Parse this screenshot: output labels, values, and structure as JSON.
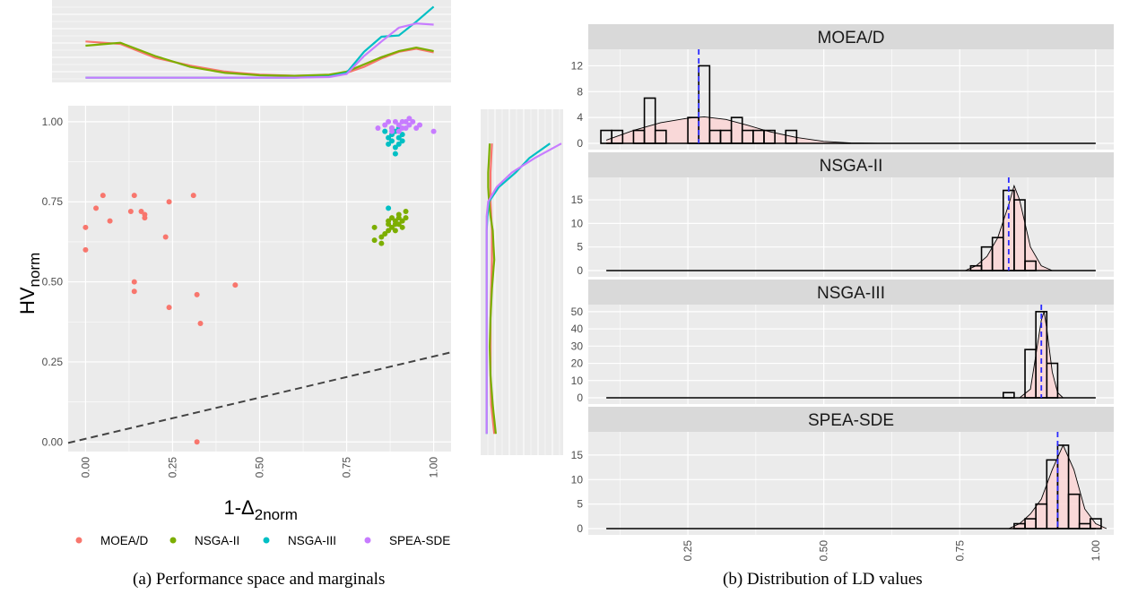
{
  "captions": {
    "a": "(a) Performance space and marginals",
    "b": "(b) Distribution of LD values"
  },
  "colors": {
    "panel_bg": "#ebebeb",
    "strip_bg": "#d9d9d9",
    "grid": "#ffffff",
    "MOEA/D": "#f8766d",
    "NSGA-II": "#7cae00",
    "NSGA-III": "#00bfc4",
    "SPEA-SDE": "#c77cff",
    "hist_fill": "#fbd5d5",
    "mean_line": "#2b2bff",
    "reference_line": "#444444"
  },
  "chart_data": [
    {
      "type": "scatter",
      "ylabel_main": "HV",
      "ylabel_sub": "norm",
      "xlabel_prefix": "1-",
      "xlabel_symbol": "Δ",
      "xlabel_sub": "2norm",
      "xlim": [
        -0.05,
        1.05
      ],
      "ylim": [
        -0.03,
        1.05
      ],
      "x_ticks": [
        "0.00",
        "0.25",
        "0.50",
        "0.75",
        "1.00"
      ],
      "y_ticks": [
        "0.00",
        "0.25",
        "0.50",
        "0.75",
        "1.00"
      ],
      "grid": true,
      "reference_line": {
        "style": "dashed",
        "points": [
          [
            -0.05,
            -0.003
          ],
          [
            1.05,
            0.28
          ]
        ]
      },
      "legend_position": "bottom",
      "series": [
        {
          "name": "MOEA/D",
          "points": [
            [
              0.0,
              0.6
            ],
            [
              0.0,
              0.67
            ],
            [
              0.03,
              0.73
            ],
            [
              0.05,
              0.77
            ],
            [
              0.07,
              0.69
            ],
            [
              0.13,
              0.72
            ],
            [
              0.14,
              0.77
            ],
            [
              0.14,
              0.5
            ],
            [
              0.14,
              0.47
            ],
            [
              0.16,
              0.72
            ],
            [
              0.17,
              0.71
            ],
            [
              0.17,
              0.7
            ],
            [
              0.23,
              0.64
            ],
            [
              0.24,
              0.75
            ],
            [
              0.24,
              0.42
            ],
            [
              0.31,
              0.77
            ],
            [
              0.32,
              0.46
            ],
            [
              0.33,
              0.37
            ],
            [
              0.43,
              0.49
            ],
            [
              0.32,
              0.0
            ]
          ]
        },
        {
          "name": "NSGA-II",
          "points": [
            [
              0.83,
              0.63
            ],
            [
              0.83,
              0.67
            ],
            [
              0.85,
              0.64
            ],
            [
              0.85,
              0.62
            ],
            [
              0.86,
              0.65
            ],
            [
              0.87,
              0.68
            ],
            [
              0.87,
              0.66
            ],
            [
              0.88,
              0.7
            ],
            [
              0.88,
              0.67
            ],
            [
              0.89,
              0.69
            ],
            [
              0.89,
              0.66
            ],
            [
              0.9,
              0.71
            ],
            [
              0.9,
              0.68
            ],
            [
              0.9,
              0.7
            ],
            [
              0.91,
              0.69
            ],
            [
              0.91,
              0.67
            ],
            [
              0.92,
              0.7
            ],
            [
              0.92,
              0.72
            ],
            [
              0.87,
              0.69
            ],
            [
              0.89,
              0.68
            ]
          ]
        },
        {
          "name": "NSGA-III",
          "points": [
            [
              0.86,
              0.97
            ],
            [
              0.87,
              0.95
            ],
            [
              0.87,
              0.93
            ],
            [
              0.88,
              0.96
            ],
            [
              0.88,
              0.94
            ],
            [
              0.89,
              0.92
            ],
            [
              0.89,
              0.97
            ],
            [
              0.89,
              0.9
            ],
            [
              0.9,
              0.95
            ],
            [
              0.9,
              0.93
            ],
            [
              0.91,
              0.96
            ],
            [
              0.91,
              0.94
            ],
            [
              0.88,
              0.98
            ],
            [
              0.9,
              0.98
            ],
            [
              0.87,
              0.73
            ]
          ]
        },
        {
          "name": "SPEA-SDE",
          "points": [
            [
              0.84,
              0.98
            ],
            [
              0.86,
              0.99
            ],
            [
              0.87,
              1.0
            ],
            [
              0.88,
              0.98
            ],
            [
              0.89,
              1.0
            ],
            [
              0.9,
              0.99
            ],
            [
              0.9,
              0.97
            ],
            [
              0.91,
              1.0
            ],
            [
              0.92,
              0.98
            ],
            [
              0.92,
              1.0
            ],
            [
              0.93,
              0.99
            ],
            [
              0.94,
              1.0
            ],
            [
              0.95,
              0.98
            ],
            [
              0.96,
              0.99
            ],
            [
              0.88,
              0.97
            ],
            [
              0.91,
              0.98
            ],
            [
              0.93,
              1.01
            ],
            [
              1.0,
              0.97
            ]
          ]
        }
      ]
    },
    {
      "type": "line",
      "role": "density of 1-Δ2norm",
      "x": [
        0.0,
        0.1,
        0.2,
        0.3,
        0.4,
        0.5,
        0.6,
        0.7,
        0.75,
        0.8,
        0.85,
        0.9,
        0.95,
        1.0
      ],
      "series": [
        {
          "name": "MOEA/D",
          "values": [
            0.62,
            0.58,
            0.35,
            0.22,
            0.12,
            0.07,
            0.05,
            0.06,
            0.1,
            0.2,
            0.34,
            0.45,
            0.5,
            0.44
          ]
        },
        {
          "name": "NSGA-II",
          "values": [
            0.55,
            0.6,
            0.38,
            0.2,
            0.1,
            0.06,
            0.05,
            0.07,
            0.12,
            0.24,
            0.36,
            0.46,
            0.52,
            0.46
          ]
        },
        {
          "name": "NSGA-III",
          "values": [
            0.02,
            0.02,
            0.02,
            0.02,
            0.02,
            0.02,
            0.02,
            0.04,
            0.1,
            0.45,
            0.7,
            0.72,
            0.95,
            1.2
          ]
        },
        {
          "name": "SPEA-SDE",
          "values": [
            0.02,
            0.02,
            0.02,
            0.02,
            0.02,
            0.02,
            0.02,
            0.03,
            0.08,
            0.38,
            0.62,
            0.85,
            0.92,
            0.9
          ]
        }
      ]
    },
    {
      "type": "line",
      "role": "density of HVnorm",
      "y": [
        0.0,
        0.1,
        0.2,
        0.3,
        0.4,
        0.5,
        0.6,
        0.7,
        0.75,
        0.8,
        0.85,
        0.9,
        0.95,
        1.0
      ],
      "series": [
        {
          "name": "MOEA/D",
          "values": [
            0.12,
            0.08,
            0.07,
            0.07,
            0.07,
            0.08,
            0.09,
            0.09,
            0.08,
            0.07,
            0.07,
            0.07,
            0.08,
            0.09
          ]
        },
        {
          "name": "NSGA-II",
          "values": [
            0.14,
            0.1,
            0.07,
            0.06,
            0.07,
            0.09,
            0.12,
            0.1,
            0.07,
            0.05,
            0.04,
            0.04,
            0.05,
            0.06
          ]
        },
        {
          "name": "NSGA-III",
          "values": [
            0.02,
            0.02,
            0.02,
            0.02,
            0.02,
            0.02,
            0.02,
            0.02,
            0.03,
            0.05,
            0.18,
            0.4,
            0.58,
            0.85
          ]
        },
        {
          "name": "SPEA-SDE",
          "values": [
            0.02,
            0.02,
            0.02,
            0.02,
            0.02,
            0.02,
            0.02,
            0.02,
            0.02,
            0.04,
            0.15,
            0.35,
            0.65,
            1.0
          ]
        }
      ]
    },
    {
      "type": "histogram",
      "facets": [
        "MOEA/D",
        "NSGA-II",
        "NSGA-III",
        "SPEA-SDE"
      ],
      "xlim": [
        0.08,
        1.02
      ],
      "x_ticks": [
        "0.25",
        "0.50",
        "0.75",
        "1.00"
      ],
      "bin_width": 0.02,
      "panels": [
        {
          "name": "MOEA/D",
          "y_ticks": [
            "0",
            "4",
            "8",
            "12"
          ],
          "ylim": [
            0,
            14
          ],
          "mean": 0.27,
          "bins": [
            [
              0.1,
              2
            ],
            [
              0.12,
              2
            ],
            [
              0.16,
              2
            ],
            [
              0.18,
              7
            ],
            [
              0.2,
              2
            ],
            [
              0.26,
              4
            ],
            [
              0.28,
              12
            ],
            [
              0.3,
              2
            ],
            [
              0.32,
              2
            ],
            [
              0.34,
              4
            ],
            [
              0.36,
              2
            ],
            [
              0.38,
              2
            ],
            [
              0.4,
              2
            ],
            [
              0.44,
              2
            ]
          ],
          "density": [
            [
              0.1,
              0.5
            ],
            [
              0.15,
              2.0
            ],
            [
              0.2,
              3.2
            ],
            [
              0.25,
              3.9
            ],
            [
              0.28,
              4.1
            ],
            [
              0.32,
              3.7
            ],
            [
              0.36,
              2.8
            ],
            [
              0.4,
              1.8
            ],
            [
              0.45,
              0.9
            ],
            [
              0.5,
              0.3
            ],
            [
              0.55,
              0.05
            ],
            [
              0.6,
              0
            ]
          ]
        },
        {
          "name": "NSGA-II",
          "y_ticks": [
            "0",
            "5",
            "10",
            "15"
          ],
          "ylim": [
            0,
            19
          ],
          "mean": 0.84,
          "bins": [
            [
              0.78,
              1
            ],
            [
              0.8,
              5
            ],
            [
              0.82,
              7
            ],
            [
              0.84,
              17
            ],
            [
              0.86,
              15
            ],
            [
              0.88,
              2
            ]
          ],
          "density": [
            [
              0.76,
              0
            ],
            [
              0.78,
              1
            ],
            [
              0.8,
              3
            ],
            [
              0.82,
              7
            ],
            [
              0.84,
              14
            ],
            [
              0.85,
              18
            ],
            [
              0.86,
              15
            ],
            [
              0.88,
              5
            ],
            [
              0.9,
              1
            ],
            [
              0.92,
              0
            ]
          ]
        },
        {
          "name": "NSGA-III",
          "y_ticks": [
            "0",
            "10",
            "20",
            "30",
            "40",
            "50"
          ],
          "ylim": [
            0,
            52
          ],
          "mean": 0.9,
          "bins": [
            [
              0.84,
              3
            ],
            [
              0.88,
              28
            ],
            [
              0.9,
              50
            ],
            [
              0.92,
              20
            ]
          ],
          "density": [
            [
              0.86,
              0
            ],
            [
              0.88,
              5
            ],
            [
              0.89,
              25
            ],
            [
              0.9,
              45
            ],
            [
              0.905,
              50
            ],
            [
              0.91,
              40
            ],
            [
              0.92,
              15
            ],
            [
              0.93,
              3
            ],
            [
              0.94,
              0
            ]
          ]
        },
        {
          "name": "SPEA-SDE",
          "y_ticks": [
            "0",
            "5",
            "10",
            "15"
          ],
          "ylim": [
            0,
            19
          ],
          "mean": 0.93,
          "bins": [
            [
              0.86,
              1
            ],
            [
              0.88,
              2
            ],
            [
              0.9,
              5
            ],
            [
              0.92,
              14
            ],
            [
              0.94,
              17
            ],
            [
              0.96,
              7
            ],
            [
              0.98,
              1
            ],
            [
              1.0,
              2
            ]
          ],
          "density": [
            [
              0.84,
              0
            ],
            [
              0.86,
              1
            ],
            [
              0.88,
              3
            ],
            [
              0.9,
              6
            ],
            [
              0.92,
              12
            ],
            [
              0.94,
              17
            ],
            [
              0.96,
              12
            ],
            [
              0.98,
              4
            ],
            [
              1.0,
              1
            ],
            [
              1.02,
              0
            ]
          ]
        }
      ]
    }
  ]
}
